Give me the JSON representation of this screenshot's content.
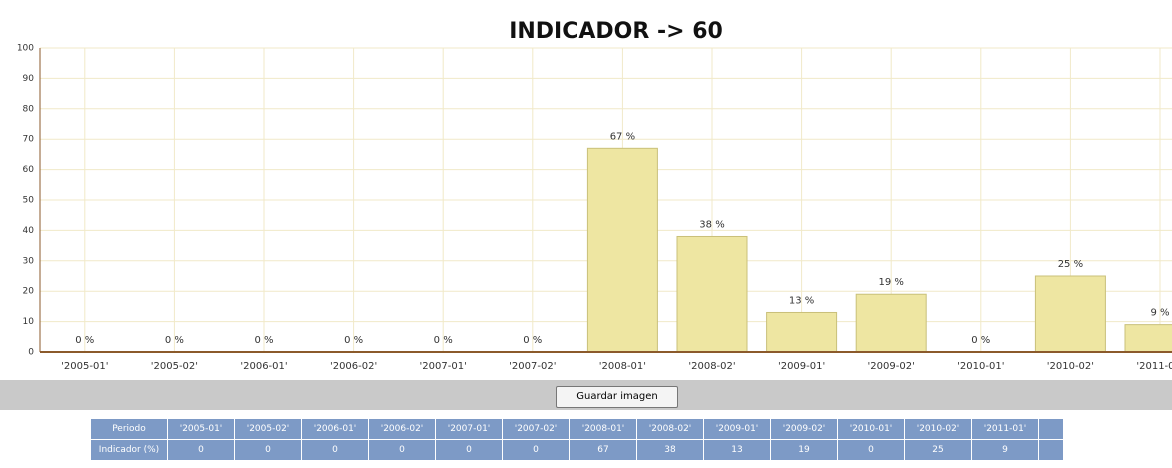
{
  "chart_data": {
    "type": "bar",
    "title": "INDICADOR -> 60",
    "categories": [
      "'2005-01'",
      "'2005-02'",
      "'2006-01'",
      "'2006-02'",
      "'2007-01'",
      "'2007-02'",
      "'2008-01'",
      "'2008-02'",
      "'2009-01'",
      "'2009-02'",
      "'2010-01'",
      "'2010-02'",
      "'2011-01'"
    ],
    "values": [
      0,
      0,
      0,
      0,
      0,
      0,
      67,
      38,
      13,
      19,
      0,
      25,
      9
    ],
    "value_labels": [
      "0 %",
      "0 %",
      "0 %",
      "0 %",
      "0 %",
      "0 %",
      "67 %",
      "38 %",
      "13 %",
      "19 %",
      "0 %",
      "25 %",
      "9 %"
    ],
    "color": "#eee6a2",
    "ylim": [
      0,
      100
    ],
    "yticks": [
      0,
      10,
      20,
      30,
      40,
      50,
      60,
      70,
      80,
      90,
      100
    ],
    "grid": true
  },
  "button": "Guardar imagen",
  "table": {
    "header": "Periodo",
    "row_label": "Indicador (%)"
  }
}
